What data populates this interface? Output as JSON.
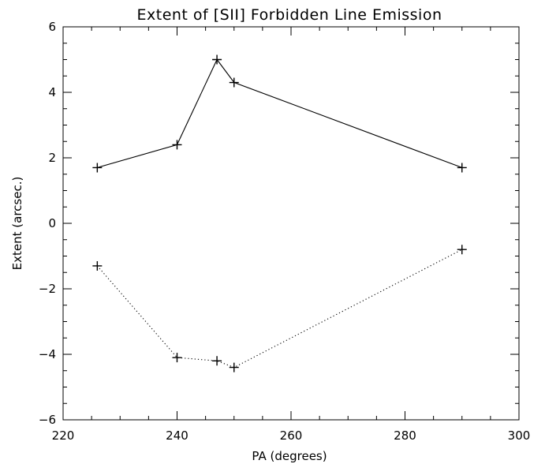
{
  "chart_data": {
    "type": "line",
    "title": "Extent of [SII] Forbidden Line Emission",
    "xlabel": "PA (degrees)",
    "ylabel": "Extent (arcsec.)",
    "xlim": [
      220,
      300
    ],
    "ylim": [
      -6,
      6
    ],
    "x_ticks": [
      220,
      240,
      260,
      280,
      300
    ],
    "y_ticks": [
      -6,
      -4,
      -2,
      0,
      2,
      4,
      6
    ],
    "x_tick_labels": [
      "220",
      "240",
      "260",
      "280",
      "300"
    ],
    "y_tick_labels": [
      "−6",
      "−4",
      "−2",
      "0",
      "2",
      "4",
      "6"
    ],
    "x_minor_step": 5,
    "y_minor_step": 0.5,
    "grid": false,
    "marker": "plus",
    "series": [
      {
        "line_style": "solid",
        "x": [
          226,
          240,
          247,
          250,
          290
        ],
        "y": [
          1.7,
          2.4,
          5.0,
          4.3,
          1.7
        ]
      },
      {
        "line_style": "dotted",
        "x": [
          226,
          240,
          247,
          250,
          290
        ],
        "y": [
          -1.3,
          -4.1,
          -4.2,
          -4.4,
          -0.8
        ]
      }
    ]
  }
}
